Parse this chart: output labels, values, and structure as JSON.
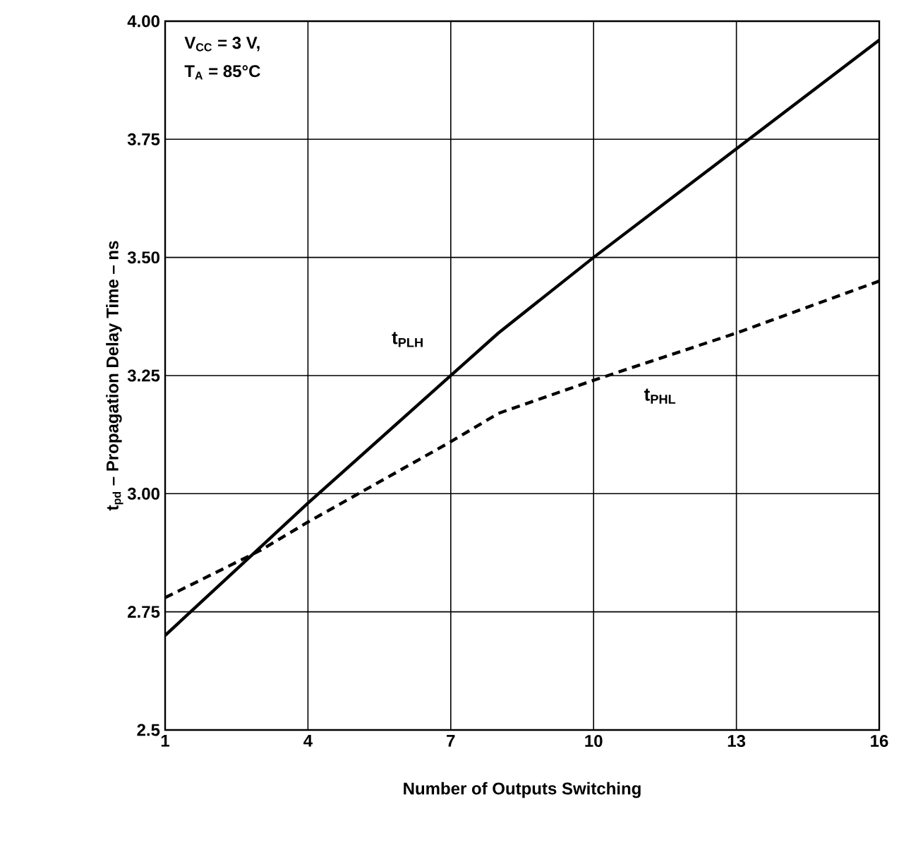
{
  "chart_data": {
    "type": "line",
    "xlabel": "Number of Outputs Switching",
    "ylabel": "t$_{pd}$ – Propagation Delay Time – ns",
    "xlim": [
      1,
      16
    ],
    "xticks": [
      1,
      4,
      7,
      10,
      13,
      16
    ],
    "ylim": [
      2.5,
      4.0
    ],
    "yticks": [
      2.5,
      2.75,
      {
        "value": 3.0,
        "label": "3.00"
      },
      3.25,
      {
        "value": 3.5,
        "label": "3.50"
      },
      3.75,
      {
        "value": 4.0,
        "label": "4.00"
      }
    ],
    "grid": true,
    "series": [
      {
        "name": "t$_{PLH}$",
        "color": "#000000",
        "line_style": "solid",
        "x": [
          1,
          4,
          7,
          8,
          10,
          13,
          16
        ],
        "values": [
          2.7,
          2.98,
          3.25,
          3.34,
          3.5,
          3.73,
          3.96
        ]
      },
      {
        "name": "t$_{PHL}$",
        "color": "#000000",
        "line_style": "dashed",
        "x": [
          1,
          3,
          4,
          7,
          8,
          10,
          13,
          16
        ],
        "values": [
          2.78,
          2.88,
          2.94,
          3.11,
          3.17,
          3.24,
          3.34,
          3.45
        ]
      }
    ],
    "annotations": [
      "V$_{CC}$ = 3 V,",
      "T$_{A}$ = 85°C"
    ]
  }
}
